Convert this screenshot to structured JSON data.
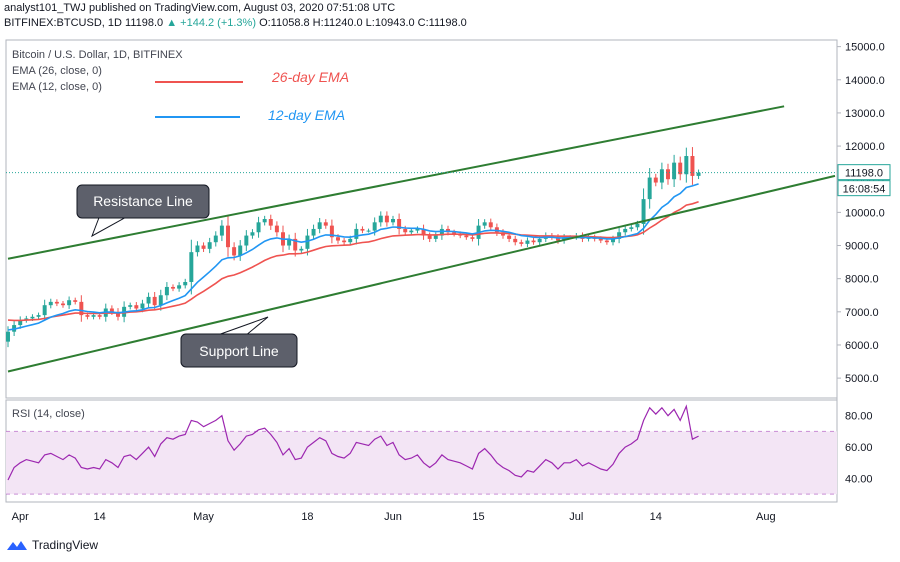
{
  "header": {
    "line1_prefix": "analyst101_TWJ published on TradingView.com, August 03, 2020 07:51:08 UTC",
    "line2_prefix": "BITFINEX:BTCUSD, 1D  11198.0",
    "line2_change": "▲ +144.2 (+1.3%)",
    "line2_ohlc": "O:11058.8 H:11240.0 L:10943.0 C:11198.0"
  },
  "legend": {
    "symbol": "Bitcoin / U.S. Dollar, 1D, BITFINEX",
    "ema26_label": "EMA (26, close, 0)",
    "ema12_label": "EMA (12, close, 0)",
    "ema26_annotation": "26-day EMA",
    "ema12_annotation": "12-day EMA",
    "rsi_label": "RSI (14, close)"
  },
  "annotations": {
    "resistance": "Resistance Line",
    "support": "Support Line"
  },
  "badges": {
    "price": "11198.0",
    "countdown": "16:08:54"
  },
  "footer": {
    "brand": "TradingView"
  },
  "colors": {
    "up": "#26a69a",
    "down": "#ef5350",
    "ema26": "#ef5350",
    "ema12": "#2196f3",
    "channel": "#2e7d32",
    "rsi_line": "#9c27b0",
    "rsi_band": "#f3e5f5"
  },
  "chart_data": {
    "type": "candlestick",
    "price_axis": {
      "ticks": [
        5000,
        6000,
        7000,
        8000,
        9000,
        10000,
        11000,
        12000,
        13000,
        14000,
        15000
      ],
      "tick_labels": [
        "5000.0",
        "6000.0",
        "7000.0",
        "8000.0",
        "9000.0",
        "10000.0",
        "11000.0",
        "12000.0",
        "13000.0",
        "14000.0",
        "15000.0"
      ],
      "range": [
        4400,
        15200
      ]
    },
    "rsi_axis": {
      "ticks": [
        40,
        60,
        80
      ],
      "tick_labels": [
        "40.00",
        "60.00",
        "80.00"
      ],
      "range": [
        25,
        90
      ],
      "band": [
        30,
        70
      ]
    },
    "x_axis": {
      "labels": [
        "Apr",
        "14",
        "May",
        "18",
        "Jun",
        "15",
        "Jul",
        "14",
        "Aug"
      ],
      "label_dates": [
        "2020-04-01",
        "2020-04-14",
        "2020-05-01",
        "2020-05-18",
        "2020-06-01",
        "2020-06-15",
        "2020-07-01",
        "2020-07-14",
        "2020-08-01"
      ],
      "start_date": "2020-03-30",
      "end_date": "2020-08-03"
    },
    "closes": [
      6400,
      6600,
      6750,
      6800,
      6850,
      6900,
      7200,
      7300,
      7250,
      7200,
      7350,
      7300,
      6900,
      6850,
      6900,
      6850,
      7100,
      7000,
      6850,
      7150,
      7200,
      7100,
      7250,
      7450,
      7200,
      7500,
      7750,
      7700,
      7800,
      7900,
      8800,
      9000,
      8900,
      9100,
      9300,
      9600,
      8950,
      8700,
      9000,
      9300,
      9400,
      9700,
      9800,
      9600,
      9400,
      9000,
      9200,
      8850,
      8900,
      9300,
      9500,
      9700,
      9600,
      9250,
      9150,
      9100,
      9200,
      9500,
      9450,
      9450,
      9700,
      9900,
      9700,
      9800,
      9500,
      9400,
      9450,
      9500,
      9300,
      9200,
      9300,
      9500,
      9400,
      9350,
      9300,
      9250,
      9200,
      9600,
      9700,
      9550,
      9400,
      9300,
      9200,
      9100,
      9050,
      9150,
      9100,
      9200,
      9300,
      9250,
      9150,
      9250,
      9250,
      9300,
      9200,
      9250,
      9200,
      9150,
      9100,
      9200,
      9400,
      9500,
      9550,
      9650,
      10400,
      11050,
      10900,
      11300,
      11000,
      11500,
      11150,
      11700,
      11100,
      11198
    ],
    "ema26": [
      6750,
      6740,
      6740,
      6750,
      6760,
      6770,
      6800,
      6840,
      6870,
      6900,
      6930,
      6960,
      6960,
      6950,
      6950,
      6950,
      6960,
      6960,
      6960,
      6970,
      6990,
      7000,
      7020,
      7050,
      7060,
      7090,
      7130,
      7170,
      7210,
      7260,
      7380,
      7510,
      7620,
      7740,
      7860,
      8000,
      8070,
      8110,
      8180,
      8260,
      8350,
      8450,
      8550,
      8630,
      8690,
      8710,
      8750,
      8750,
      8760,
      8800,
      8860,
      8920,
      8970,
      8990,
      9000,
      9010,
      9020,
      9060,
      9090,
      9110,
      9150,
      9210,
      9250,
      9290,
      9300,
      9310,
      9320,
      9330,
      9330,
      9320,
      9320,
      9330,
      9340,
      9340,
      9340,
      9330,
      9320,
      9340,
      9370,
      9380,
      9380,
      9370,
      9360,
      9340,
      9320,
      9310,
      9300,
      9290,
      9290,
      9290,
      9280,
      9280,
      9280,
      9280,
      9270,
      9270,
      9260,
      9250,
      9240,
      9240,
      9250,
      9270,
      9290,
      9320,
      9400,
      9530,
      9640,
      9770,
      9870,
      10000,
      10090,
      10220,
      10260,
      10320
    ],
    "ema12": [
      6450,
      6480,
      6520,
      6570,
      6610,
      6660,
      6750,
      6840,
      6900,
      6950,
      7020,
      7060,
      7040,
      7010,
      6990,
      6970,
      6990,
      6990,
      6970,
      6990,
      7020,
      7030,
      7060,
      7120,
      7130,
      7190,
      7270,
      7340,
      7410,
      7490,
      7690,
      7890,
      8050,
      8210,
      8380,
      8570,
      8630,
      8640,
      8690,
      8780,
      8880,
      9010,
      9130,
      9200,
      9230,
      9190,
      9190,
      9140,
      9100,
      9130,
      9190,
      9270,
      9320,
      9310,
      9290,
      9260,
      9250,
      9290,
      9320,
      9340,
      9400,
      9490,
      9520,
      9560,
      9550,
      9530,
      9520,
      9520,
      9490,
      9440,
      9420,
      9430,
      9430,
      9420,
      9400,
      9380,
      9350,
      9390,
      9440,
      9460,
      9450,
      9430,
      9400,
      9350,
      9300,
      9280,
      9250,
      9240,
      9250,
      9250,
      9230,
      9230,
      9240,
      9240,
      9240,
      9240,
      9230,
      9220,
      9200,
      9200,
      9230,
      9270,
      9310,
      9360,
      9520,
      9760,
      9940,
      10150,
      10280,
      10470,
      10570,
      10750,
      10800,
      10860
    ],
    "rsi": [
      39,
      47,
      50,
      52,
      51,
      50,
      55,
      56,
      54,
      52,
      55,
      53,
      47,
      46,
      47,
      46,
      52,
      50,
      47,
      54,
      55,
      52,
      56,
      60,
      54,
      62,
      66,
      65,
      67,
      68,
      77,
      76,
      73,
      75,
      77,
      80,
      64,
      58,
      62,
      67,
      68,
      71,
      72,
      68,
      63,
      55,
      59,
      52,
      53,
      60,
      63,
      66,
      64,
      56,
      54,
      53,
      56,
      63,
      62,
      61,
      65,
      67,
      61,
      63,
      55,
      52,
      53,
      55,
      50,
      47,
      50,
      55,
      52,
      51,
      50,
      48,
      46,
      56,
      59,
      55,
      50,
      47,
      45,
      42,
      41,
      45,
      44,
      48,
      52,
      50,
      46,
      50,
      50,
      52,
      48,
      50,
      48,
      46,
      45,
      49,
      56,
      60,
      62,
      65,
      77,
      85,
      81,
      85,
      80,
      84,
      77,
      86,
      65,
      67
    ],
    "resistance_line": {
      "from": [
        "2020-03-30",
        8600
      ],
      "to": [
        "2020-08-04",
        13200
      ]
    },
    "support_line": {
      "from": [
        "2020-03-30",
        5200
      ],
      "to": [
        "2020-08-14",
        11100
      ]
    },
    "last_price": 11198.0
  }
}
